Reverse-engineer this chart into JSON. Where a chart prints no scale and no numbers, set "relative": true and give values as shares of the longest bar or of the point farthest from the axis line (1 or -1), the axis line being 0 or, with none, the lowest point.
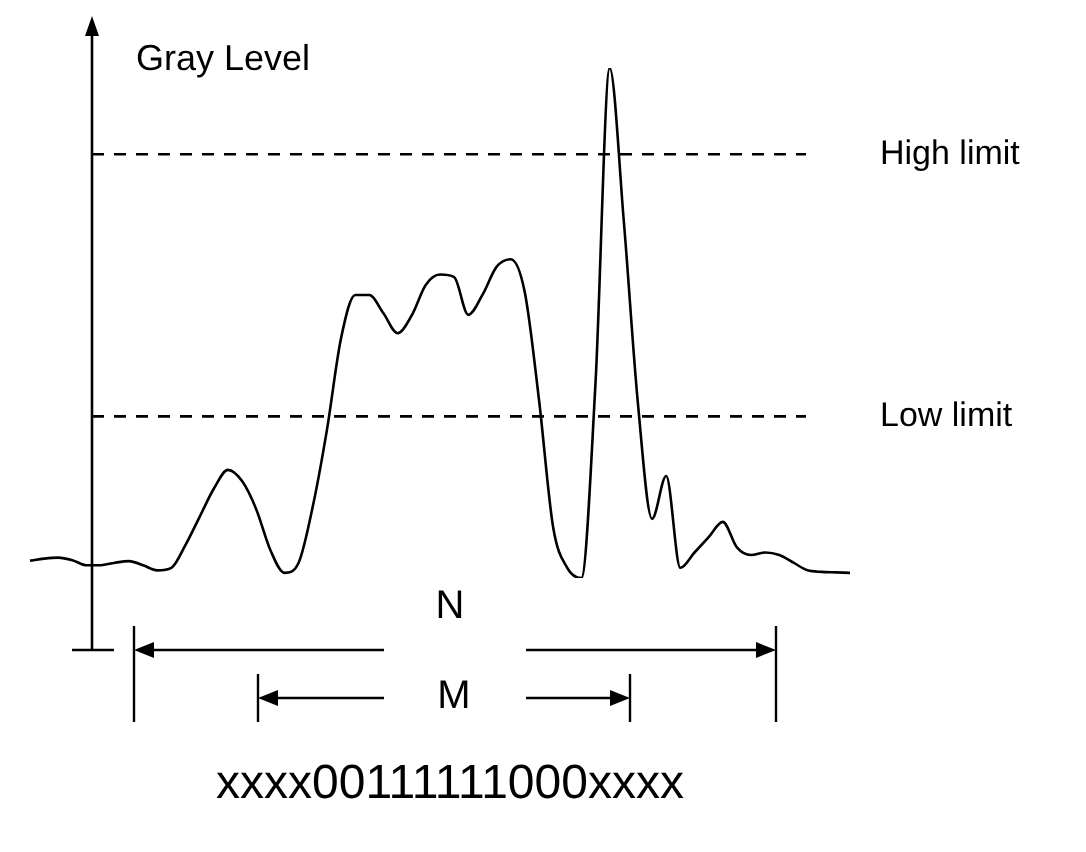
{
  "chart_data": {
    "type": "line",
    "relative": true,
    "ylabel": "Gray Level",
    "legend": false,
    "marker": "none",
    "line_style": "solid",
    "categories": [
      null,
      null,
      null,
      null,
      null,
      null,
      null,
      null,
      null,
      null,
      null,
      null,
      null,
      null,
      null,
      null,
      null,
      null,
      null,
      null,
      null,
      null,
      null,
      null,
      null,
      null,
      null,
      null,
      null,
      null,
      null,
      null,
      null,
      null,
      null,
      null,
      null,
      null,
      null,
      null,
      null,
      null,
      null,
      null,
      null,
      null,
      null,
      null,
      null,
      null,
      null,
      null,
      null,
      null,
      null,
      null,
      null,
      null,
      null
    ],
    "series": [
      {
        "color": "#000000",
        "values": [
          0.034,
          0.038,
          0.04,
          0.035,
          0.025,
          0.025,
          0.03,
          0.033,
          0.025,
          0.015,
          0.02,
          0.065,
          0.12,
          0.175,
          0.212,
          0.19,
          0.135,
          0.055,
          0.01,
          0.03,
          0.14,
          0.29,
          0.47,
          0.555,
          0.555,
          0.519,
          0.48,
          0.515,
          0.575,
          0.595,
          0.59,
          0.516,
          0.555,
          0.61,
          0.625,
          0.56,
          0.35,
          0.1,
          0.02,
          0,
          0.383,
          1,
          0.7,
          0.342,
          0.116,
          0.2,
          0.02,
          0.05,
          0.08,
          0.11,
          0.06,
          0.045,
          0.05,
          0.045,
          0.03,
          0.015,
          0.012,
          0.011,
          0.01
        ]
      }
    ],
    "ref_lines": [
      {
        "axis": "y",
        "value": 0.831,
        "label": "High limit",
        "color": "#000000",
        "line_style": "dashed"
      },
      {
        "axis": "y",
        "value": 0.317,
        "label": "Low limit",
        "color": "#000000",
        "line_style": "dashed"
      }
    ],
    "annotations": [
      "N",
      "M",
      "xxxx00111111000xxxx"
    ]
  }
}
